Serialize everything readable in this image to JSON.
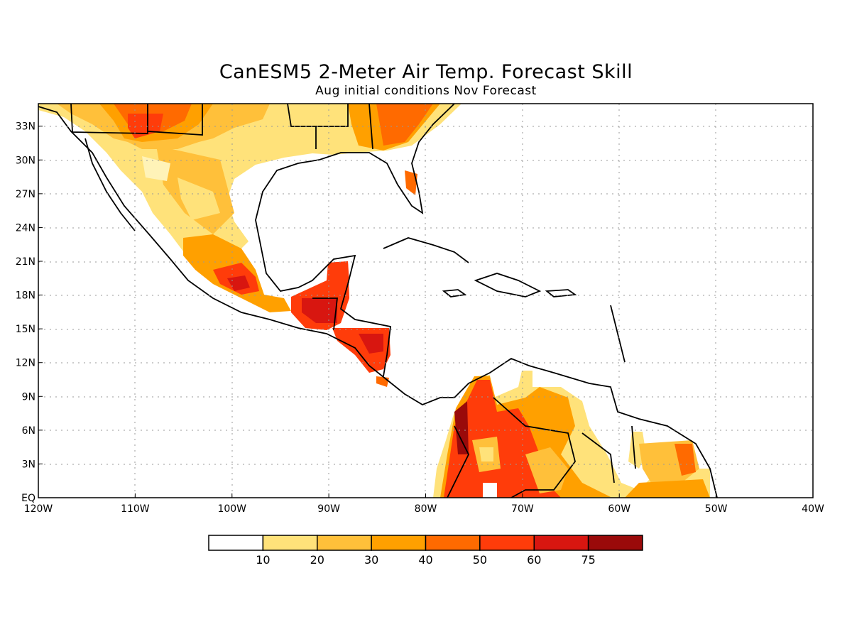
{
  "title": "CanESM5 2-Meter Air Temp. Forecast Skill",
  "subtitle": "Aug initial conditions  Nov Forecast",
  "map": {
    "lon_range": [
      -120,
      -40
    ],
    "lat_range": [
      0,
      35
    ],
    "lon_labels": [
      "120W",
      "110W",
      "100W",
      "90W",
      "80W",
      "70W",
      "60W",
      "50W",
      "40W"
    ],
    "lat_labels": [
      "EQ",
      "3N",
      "6N",
      "9N",
      "12N",
      "15N",
      "18N",
      "21N",
      "24N",
      "27N",
      "30N",
      "33N"
    ],
    "grid": true
  },
  "colorbar": {
    "labels": [
      "10",
      "20",
      "30",
      "40",
      "50",
      "60",
      "75"
    ],
    "colors": [
      "#ffffff",
      "#ffe27a",
      "#ffc03a",
      "#ffa000",
      "#ff6a00",
      "#ff3c0a",
      "#d81610",
      "#9a0a0a"
    ]
  }
}
